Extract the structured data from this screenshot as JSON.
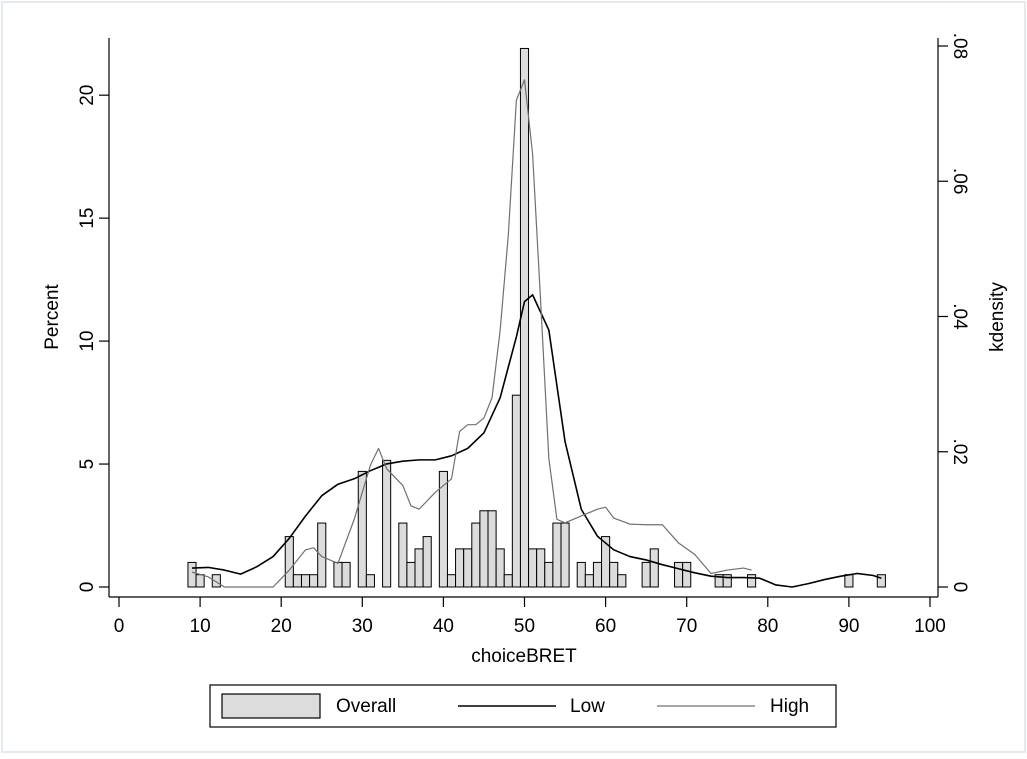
{
  "chart_data": {
    "type": "bar",
    "xlabel": "choiceBRET",
    "ylabel": "Percent",
    "y2label": "kdensity",
    "xlim": [
      0,
      100
    ],
    "ylim": [
      0,
      22
    ],
    "y2lim": [
      0,
      0.08
    ],
    "xticks": [
      "0",
      "10",
      "20",
      "30",
      "40",
      "50",
      "60",
      "70",
      "80",
      "90",
      "100"
    ],
    "yticks": [
      "0",
      "5",
      "10",
      "15",
      "20"
    ],
    "y2ticks": [
      "0",
      ".02",
      ".04",
      ".06",
      ".08"
    ],
    "grid": false,
    "legend_position": "bottom",
    "colors": {
      "bar_fill": "#dcdcdc",
      "low": "#000000",
      "high": "#707070",
      "frame": "#e3eaf0"
    },
    "histogram": {
      "name": "Overall",
      "bin_width": 1,
      "x": [
        9,
        10,
        12,
        21,
        22,
        23,
        24,
        25,
        27,
        28,
        30,
        31,
        33,
        35,
        36,
        37,
        38,
        40,
        41,
        42,
        43,
        44,
        45,
        46,
        47,
        48,
        49,
        50,
        51,
        52,
        53,
        54,
        55,
        57,
        58,
        59,
        60,
        61,
        62,
        65,
        66,
        69,
        70,
        74,
        75,
        78,
        90,
        94
      ],
      "values": [
        1.0,
        0.5,
        0.5,
        2.05,
        0.5,
        0.5,
        0.5,
        2.6,
        1.0,
        1.0,
        4.7,
        0.5,
        5.15,
        2.6,
        1.0,
        1.55,
        2.05,
        4.7,
        0.5,
        1.55,
        1.55,
        2.6,
        3.1,
        3.1,
        1.55,
        0.5,
        7.8,
        21.9,
        1.55,
        1.55,
        1.0,
        2.6,
        2.6,
        1.0,
        0.5,
        1.0,
        2.05,
        1.0,
        0.5,
        1.0,
        1.55,
        1.0,
        1.0,
        0.5,
        0.5,
        0.5,
        0.5,
        0.5
      ]
    },
    "series": [
      {
        "name": "Low",
        "axis": "right",
        "x": [
          9,
          11,
          13,
          15,
          17,
          19,
          21,
          23,
          25,
          27,
          29,
          31,
          33,
          35,
          37,
          39,
          41,
          43,
          45,
          47,
          49,
          50,
          51,
          53,
          55,
          57,
          59,
          61,
          63,
          65,
          67,
          69,
          71,
          73,
          75,
          77,
          79,
          81,
          83,
          85,
          87,
          89,
          91,
          93,
          94
        ],
        "values": [
          0.0028,
          0.0029,
          0.0025,
          0.0019,
          0.003,
          0.0045,
          0.0072,
          0.0105,
          0.0135,
          0.0152,
          0.016,
          0.0172,
          0.0182,
          0.0186,
          0.0188,
          0.0188,
          0.0194,
          0.0205,
          0.0228,
          0.028,
          0.037,
          0.0422,
          0.0432,
          0.038,
          0.0215,
          0.0115,
          0.0075,
          0.0055,
          0.0045,
          0.004,
          0.0033,
          0.0027,
          0.0021,
          0.0016,
          0.0014,
          0.0014,
          0.0013,
          0.0003,
          0.0,
          0.0005,
          0.0011,
          0.0016,
          0.002,
          0.0017,
          0.0013
        ]
      },
      {
        "name": "High",
        "axis": "right",
        "x": [
          9,
          11,
          13,
          15,
          17,
          19,
          21,
          23,
          24,
          25,
          27,
          29,
          31,
          32,
          33,
          35,
          36,
          37,
          39,
          41,
          42,
          43,
          44,
          45,
          46,
          47,
          48,
          49,
          50,
          51,
          52,
          53,
          54,
          55,
          57,
          59,
          60,
          61,
          63,
          65,
          67,
          69,
          71,
          73,
          75,
          77,
          78
        ],
        "values": [
          0.0022,
          0.0015,
          0.0,
          0.0,
          0.0,
          0.0,
          0.0025,
          0.0055,
          0.0058,
          0.0045,
          0.0035,
          0.01,
          0.018,
          0.0205,
          0.0175,
          0.015,
          0.012,
          0.0115,
          0.014,
          0.016,
          0.023,
          0.024,
          0.024,
          0.025,
          0.028,
          0.038,
          0.052,
          0.072,
          0.075,
          0.064,
          0.042,
          0.019,
          0.01,
          0.0095,
          0.0105,
          0.0115,
          0.0118,
          0.0102,
          0.0093,
          0.0092,
          0.0092,
          0.0065,
          0.0048,
          0.002,
          0.0025,
          0.0028,
          0.0025
        ]
      }
    ]
  },
  "legend": {
    "items": [
      {
        "label": "Overall",
        "kind": "bar"
      },
      {
        "label": "Low",
        "kind": "line-low"
      },
      {
        "label": "High",
        "kind": "line-high"
      }
    ]
  }
}
